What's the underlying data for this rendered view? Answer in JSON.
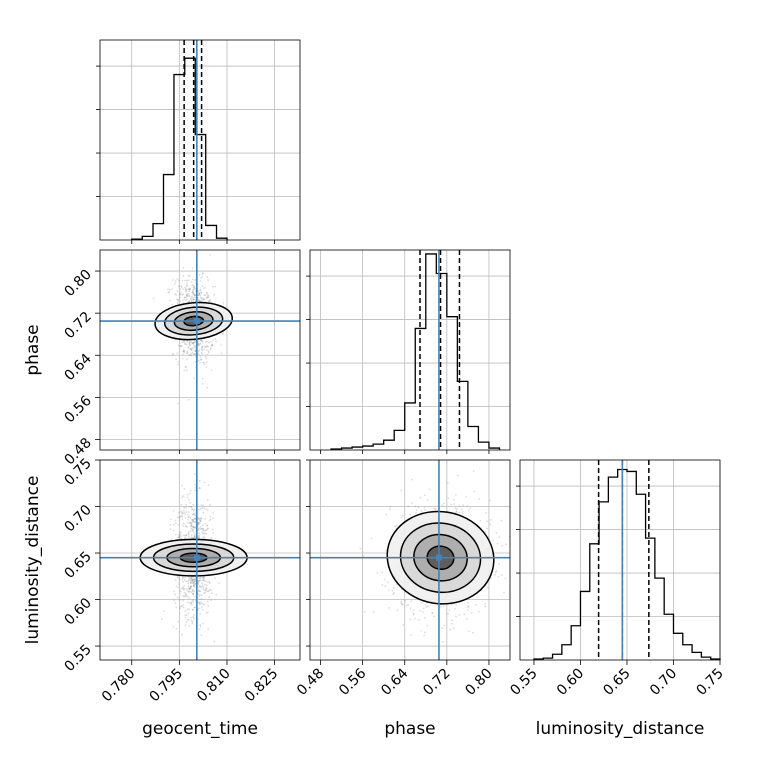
{
  "chart_data": {
    "type": "corner",
    "parameters": [
      "geocent_time",
      "phase",
      "luminosity_distance"
    ],
    "truths": [
      0.8005,
      0.705,
      0.645
    ],
    "colors": {
      "truth": "#4682b4",
      "contour": "#000000",
      "grid": "#bbbbbb",
      "samples": "#808080"
    },
    "grid": true,
    "ranges": [
      [
        0.77,
        0.833
      ],
      [
        0.46,
        0.84
      ],
      [
        0.535,
        0.75
      ]
    ],
    "ticks": [
      {
        "values": [
          0.78,
          0.795,
          0.81,
          0.825
        ],
        "labels": [
          "0.780",
          "0.795",
          "0.810",
          "0.825"
        ]
      },
      {
        "values": [
          0.48,
          0.56,
          0.64,
          0.72,
          0.8
        ],
        "labels": [
          "0.48",
          "0.56",
          "0.64",
          "0.72",
          "0.80"
        ]
      },
      {
        "values": [
          0.55,
          0.6,
          0.65,
          0.7,
          0.75
        ],
        "labels": [
          "0.55",
          "0.60",
          "0.65",
          "0.70",
          "0.75"
        ]
      }
    ],
    "marginals": [
      {
        "parameter": "geocent_time",
        "bin_edges": [
          0.78,
          0.7833,
          0.7867,
          0.79,
          0.7933,
          0.7967,
          0.8,
          0.8033,
          0.8067,
          0.81
        ],
        "counts": [
          0.005,
          0.02,
          0.09,
          0.36,
          0.91,
          1.0,
          0.58,
          0.08,
          0.01
        ],
        "quantiles": [
          0.7965,
          0.7995,
          0.802
        ],
        "ylim": [
          0,
          1.1
        ]
      },
      {
        "parameter": "phase",
        "bin_edges": [
          0.5,
          0.52,
          0.54,
          0.56,
          0.58,
          0.6,
          0.62,
          0.64,
          0.66,
          0.68,
          0.7,
          0.72,
          0.74,
          0.76,
          0.78,
          0.8,
          0.82
        ],
        "counts": [
          0.005,
          0.01,
          0.015,
          0.02,
          0.03,
          0.05,
          0.1,
          0.24,
          0.62,
          1.0,
          0.9,
          0.68,
          0.35,
          0.12,
          0.04,
          0.01
        ],
        "quantiles": [
          0.669,
          0.708,
          0.744
        ],
        "ylim": [
          0,
          1.02
        ]
      },
      {
        "parameter": "luminosity_distance",
        "bin_edges": [
          0.55,
          0.56,
          0.57,
          0.58,
          0.59,
          0.6,
          0.61,
          0.62,
          0.63,
          0.64,
          0.65,
          0.66,
          0.67,
          0.68,
          0.69,
          0.7,
          0.71,
          0.72,
          0.73,
          0.74,
          0.75
        ],
        "counts": [
          0.005,
          0.01,
          0.03,
          0.08,
          0.18,
          0.36,
          0.61,
          0.83,
          0.96,
          1.0,
          0.99,
          0.87,
          0.64,
          0.43,
          0.24,
          0.14,
          0.08,
          0.04,
          0.015,
          0.005
        ],
        "quantiles": [
          0.6195,
          0.645,
          0.6735
        ],
        "ylim": [
          0,
          1.05
        ]
      }
    ],
    "joints": [
      {
        "x": "geocent_time",
        "y": "phase",
        "center": [
          0.7995,
          0.705
        ],
        "sigma": [
          0.0025,
          0.032
        ],
        "rho": -0.15
      },
      {
        "x": "geocent_time",
        "y": "luminosity_distance",
        "center": [
          0.7995,
          0.645
        ],
        "sigma": [
          0.0025,
          0.025
        ],
        "rho": 0.0
      },
      {
        "x": "phase",
        "y": "luminosity_distance",
        "center": [
          0.708,
          0.645
        ],
        "sigma": [
          0.038,
          0.025
        ],
        "rho": 0.05
      }
    ],
    "contour_levels_sigma": [
      0.5,
      1.0,
      1.5,
      2.0
    ]
  }
}
